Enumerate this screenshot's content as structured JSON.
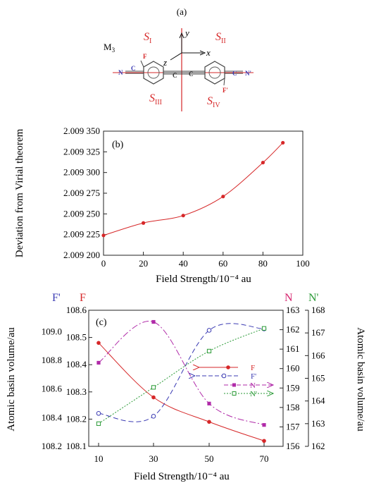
{
  "colors": {
    "red": "#d62728",
    "blue": "#3b3bb3",
    "magenta": "#b02aa8",
    "green": "#2a9a36",
    "pink_label": "#d6246e",
    "axis": "#222222"
  },
  "panel_a": {
    "label": "(a)",
    "m3": "M",
    "m3_sub": "3",
    "s1": "S",
    "s1_sub": "I",
    "s2": "S",
    "s2_sub": "II",
    "s3": "S",
    "s3_sub": "III",
    "s4": "S",
    "s4_sub": "IV",
    "y": "y",
    "x": "x",
    "z": "z",
    "atom_F": "F",
    "atom_F_prime": "F'",
    "atom_N": "N",
    "atom_C1": "C",
    "atom_C2": "C",
    "atom_C2p": "C",
    "atom_C1p": "C",
    "atom_N_prime": "N'"
  },
  "chart_data": [
    {
      "type": "line",
      "panel_label": "(b)",
      "xlabel": "Field Strength/10⁻⁴ au",
      "ylabel": "Deviation from Virial theorem",
      "xlim": [
        0,
        100
      ],
      "ylim": [
        2.0092,
        2.00935
      ],
      "x_ticks": [
        0,
        20,
        40,
        60,
        80,
        100
      ],
      "x_tick_labels": [
        "0",
        "20",
        "40",
        "60",
        "80",
        "100"
      ],
      "y_ticks": [
        2.0092,
        2.009225,
        2.00925,
        2.009275,
        2.0093,
        2.009325,
        2.00935
      ],
      "y_tick_labels": [
        "2.009 200",
        "2.009 225",
        "2.009 250",
        "2.009 275",
        "2.009 300",
        "2.009 325",
        "2.009 350"
      ],
      "series": [
        {
          "x": [
            0,
            20,
            40,
            60,
            80,
            90
          ],
          "y": [
            2.009224,
            2.009239,
            2.009248,
            2.009271,
            2.009312,
            2.009336
          ]
        }
      ]
    },
    {
      "type": "line",
      "panel_label": "(c)",
      "xlabel": "Field Strength/10⁻⁴ au",
      "ylabel_left": "Atomic basin volume/au",
      "ylabel_right": "Atomic basin volume/au",
      "x_ticks": [
        10,
        30,
        50,
        70
      ],
      "x_tick_labels": [
        "10",
        "30",
        "50",
        "70"
      ],
      "axis_headers": {
        "F_prime": "F'",
        "F": "F",
        "N": "N",
        "N_prime": "N'"
      },
      "axes": {
        "F_prime": {
          "ylim": [
            108.2,
            109.15
          ],
          "ticks": [
            "109.0",
            "108.8",
            "108.6",
            "108.4",
            "108.2"
          ],
          "tick_values": [
            109.0,
            108.8,
            108.6,
            108.4,
            108.2
          ]
        },
        "F": {
          "ylim": [
            108.1,
            108.6
          ],
          "ticks": [
            "108.6",
            "108.5",
            "108.4",
            "108.3",
            "108.2",
            "108.1"
          ],
          "tick_values": [
            108.6,
            108.5,
            108.4,
            108.3,
            108.2,
            108.1
          ]
        },
        "N": {
          "ylim": [
            156,
            163
          ],
          "ticks": [
            "163",
            "162",
            "161",
            "160",
            "159",
            "158",
            "157",
            "156"
          ],
          "tick_values": [
            163,
            162,
            161,
            160,
            159,
            158,
            157,
            156
          ]
        },
        "N_prime": {
          "ylim": [
            162,
            168
          ],
          "ticks": [
            "168",
            "167",
            "166",
            "165",
            "164",
            "163",
            "162"
          ],
          "tick_values": [
            168,
            167,
            166,
            165,
            164,
            163,
            162
          ]
        }
      },
      "series": [
        {
          "name": "F",
          "axis": "F",
          "x": [
            10,
            30,
            50,
            70
          ],
          "y": [
            108.48,
            108.28,
            108.19,
            108.12
          ]
        },
        {
          "name": "F'",
          "axis": "F_prime",
          "x": [
            10,
            30,
            50,
            70
          ],
          "y": [
            108.43,
            108.41,
            109.01,
            109.02
          ]
        },
        {
          "name": "N",
          "axis": "N",
          "x": [
            10,
            30,
            50,
            70
          ],
          "y": [
            160.3,
            162.4,
            158.2,
            157.1
          ]
        },
        {
          "name": "N'",
          "axis": "N_prime",
          "x": [
            10,
            30,
            50,
            70
          ],
          "y": [
            163.0,
            164.6,
            166.2,
            167.2
          ]
        }
      ],
      "legend": [
        "F",
        "F'",
        "N",
        "N'"
      ],
      "legend_position": "center-right"
    }
  ]
}
